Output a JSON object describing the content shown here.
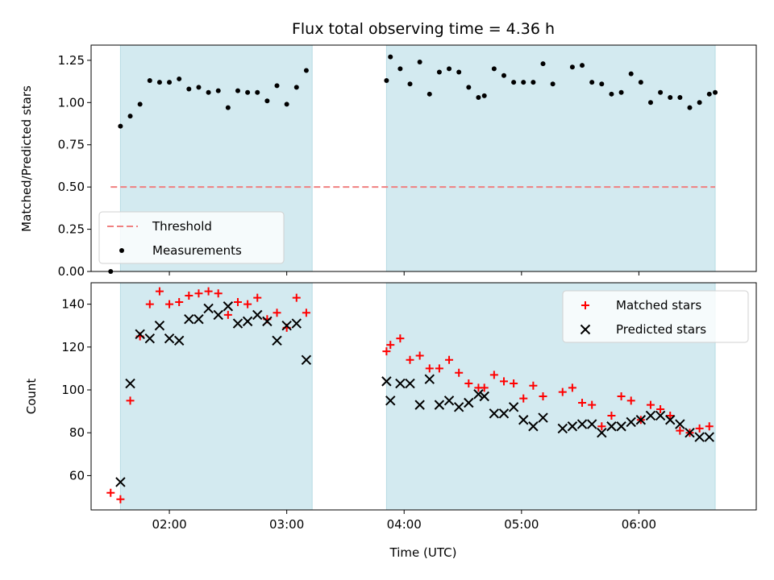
{
  "chart_data": [
    {
      "type": "scatter",
      "title": "Flux total observing time = 4.36 h",
      "xlabel": "",
      "ylabel": "Matched/Predicted stars",
      "xlim": [
        "01:20",
        "07:00"
      ],
      "ylim": [
        0,
        1.34
      ],
      "yticks": [
        "0.00",
        "0.25",
        "0.50",
        "0.75",
        "1.00",
        "1.25"
      ],
      "xticks": [
        "02:00",
        "03:00",
        "04:00",
        "05:00",
        "06:00"
      ],
      "shaded_spans": [
        [
          "01:35",
          "03:13"
        ],
        [
          "03:51",
          "06:39"
        ]
      ],
      "shade_color": "#d3eaf0",
      "threshold": {
        "name": "Threshold",
        "value": 0.5,
        "x_from": "01:30",
        "x_to": "06:39",
        "color": "#f08080"
      },
      "series": [
        {
          "name": "Measurements",
          "marker": "dot",
          "color": "#000000",
          "points": [
            [
              "01:30",
              0.0
            ],
            [
              "01:35",
              0.86
            ],
            [
              "01:40",
              0.92
            ],
            [
              "01:45",
              0.99
            ],
            [
              "01:50",
              1.13
            ],
            [
              "01:55",
              1.12
            ],
            [
              "02:00",
              1.12
            ],
            [
              "02:05",
              1.14
            ],
            [
              "02:10",
              1.08
            ],
            [
              "02:15",
              1.09
            ],
            [
              "02:20",
              1.06
            ],
            [
              "02:25",
              1.07
            ],
            [
              "02:30",
              0.97
            ],
            [
              "02:35",
              1.07
            ],
            [
              "02:40",
              1.06
            ],
            [
              "02:45",
              1.06
            ],
            [
              "02:50",
              1.01
            ],
            [
              "02:55",
              1.1
            ],
            [
              "03:00",
              0.99
            ],
            [
              "03:05",
              1.09
            ],
            [
              "03:10",
              1.19
            ],
            [
              "03:51",
              1.13
            ],
            [
              "03:53",
              1.27
            ],
            [
              "03:58",
              1.2
            ],
            [
              "04:03",
              1.11
            ],
            [
              "04:08",
              1.24
            ],
            [
              "04:13",
              1.05
            ],
            [
              "04:18",
              1.18
            ],
            [
              "04:23",
              1.2
            ],
            [
              "04:28",
              1.18
            ],
            [
              "04:33",
              1.09
            ],
            [
              "04:38",
              1.03
            ],
            [
              "04:41",
              1.04
            ],
            [
              "04:46",
              1.2
            ],
            [
              "04:51",
              1.16
            ],
            [
              "04:56",
              1.12
            ],
            [
              "05:01",
              1.12
            ],
            [
              "05:06",
              1.12
            ],
            [
              "05:11",
              1.23
            ],
            [
              "05:16",
              1.11
            ],
            [
              "05:26",
              1.21
            ],
            [
              "05:31",
              1.22
            ],
            [
              "05:36",
              1.12
            ],
            [
              "05:41",
              1.11
            ],
            [
              "05:46",
              1.05
            ],
            [
              "05:51",
              1.06
            ],
            [
              "05:56",
              1.17
            ],
            [
              "06:01",
              1.12
            ],
            [
              "06:06",
              1.0
            ],
            [
              "06:11",
              1.06
            ],
            [
              "06:16",
              1.03
            ],
            [
              "06:21",
              1.03
            ],
            [
              "06:26",
              0.97
            ],
            [
              "06:31",
              1.0
            ],
            [
              "06:36",
              1.05
            ],
            [
              "06:39",
              1.06
            ]
          ]
        }
      ],
      "legend": {
        "placement": "lower-left",
        "entries": [
          "Threshold",
          "Measurements"
        ]
      },
      "grid": false
    },
    {
      "type": "scatter",
      "title": "",
      "xlabel": "Time (UTC)",
      "ylabel": "Count",
      "xlim": [
        "01:20",
        "07:00"
      ],
      "ylim": [
        44,
        150
      ],
      "yticks": [
        "60",
        "80",
        "100",
        "120",
        "140"
      ],
      "xticks": [
        "02:00",
        "03:00",
        "04:00",
        "05:00",
        "06:00"
      ],
      "shaded_spans": [
        [
          "01:35",
          "03:13"
        ],
        [
          "03:51",
          "06:39"
        ]
      ],
      "shade_color": "#d3eaf0",
      "series": [
        {
          "name": "Matched stars",
          "marker": "plus",
          "color": "#ff0000",
          "points": [
            [
              "01:30",
              52
            ],
            [
              "01:35",
              49
            ],
            [
              "01:40",
              95
            ],
            [
              "01:45",
              125
            ],
            [
              "01:50",
              140
            ],
            [
              "01:55",
              146
            ],
            [
              "02:00",
              140
            ],
            [
              "02:05",
              141
            ],
            [
              "02:10",
              144
            ],
            [
              "02:15",
              145
            ],
            [
              "02:20",
              146
            ],
            [
              "02:25",
              145
            ],
            [
              "02:30",
              135
            ],
            [
              "02:35",
              141
            ],
            [
              "02:40",
              140
            ],
            [
              "02:45",
              143
            ],
            [
              "02:50",
              133
            ],
            [
              "02:55",
              136
            ],
            [
              "03:00",
              129
            ],
            [
              "03:05",
              143
            ],
            [
              "03:10",
              136
            ],
            [
              "03:51",
              118
            ],
            [
              "03:53",
              121
            ],
            [
              "03:58",
              124
            ],
            [
              "04:03",
              114
            ],
            [
              "04:08",
              116
            ],
            [
              "04:13",
              110
            ],
            [
              "04:18",
              110
            ],
            [
              "04:23",
              114
            ],
            [
              "04:28",
              108
            ],
            [
              "04:33",
              103
            ],
            [
              "04:38",
              101
            ],
            [
              "04:41",
              101
            ],
            [
              "04:46",
              107
            ],
            [
              "04:51",
              104
            ],
            [
              "04:56",
              103
            ],
            [
              "05:01",
              96
            ],
            [
              "05:06",
              102
            ],
            [
              "05:11",
              97
            ],
            [
              "05:21",
              99
            ],
            [
              "05:26",
              101
            ],
            [
              "05:31",
              94
            ],
            [
              "05:36",
              93
            ],
            [
              "05:41",
              83
            ],
            [
              "05:46",
              88
            ],
            [
              "05:51",
              97
            ],
            [
              "05:56",
              95
            ],
            [
              "06:01",
              86
            ],
            [
              "06:06",
              93
            ],
            [
              "06:11",
              91
            ],
            [
              "06:16",
              88
            ],
            [
              "06:21",
              81
            ],
            [
              "06:26",
              80
            ],
            [
              "06:31",
              82
            ],
            [
              "06:36",
              83
            ]
          ]
        },
        {
          "name": "Predicted stars",
          "marker": "x",
          "color": "#000000",
          "points": [
            [
              "01:35",
              57
            ],
            [
              "01:40",
              103
            ],
            [
              "01:45",
              126
            ],
            [
              "01:50",
              124
            ],
            [
              "01:55",
              130
            ],
            [
              "02:00",
              124
            ],
            [
              "02:05",
              123
            ],
            [
              "02:10",
              133
            ],
            [
              "02:15",
              133
            ],
            [
              "02:20",
              138
            ],
            [
              "02:25",
              135
            ],
            [
              "02:30",
              139
            ],
            [
              "02:35",
              131
            ],
            [
              "02:40",
              132
            ],
            [
              "02:45",
              135
            ],
            [
              "02:50",
              132
            ],
            [
              "02:55",
              123
            ],
            [
              "03:00",
              130
            ],
            [
              "03:05",
              131
            ],
            [
              "03:10",
              114
            ],
            [
              "03:51",
              104
            ],
            [
              "03:53",
              95
            ],
            [
              "03:58",
              103
            ],
            [
              "04:03",
              103
            ],
            [
              "04:08",
              93
            ],
            [
              "04:13",
              105
            ],
            [
              "04:18",
              93
            ],
            [
              "04:23",
              95
            ],
            [
              "04:28",
              92
            ],
            [
              "04:33",
              94
            ],
            [
              "04:38",
              98
            ],
            [
              "04:41",
              97
            ],
            [
              "04:46",
              89
            ],
            [
              "04:51",
              89
            ],
            [
              "04:56",
              92
            ],
            [
              "05:01",
              86
            ],
            [
              "05:06",
              83
            ],
            [
              "05:11",
              87
            ],
            [
              "05:21",
              82
            ],
            [
              "05:26",
              83
            ],
            [
              "05:31",
              84
            ],
            [
              "05:36",
              84
            ],
            [
              "05:41",
              80
            ],
            [
              "05:46",
              83
            ],
            [
              "05:51",
              83
            ],
            [
              "05:56",
              85
            ],
            [
              "06:01",
              86
            ],
            [
              "06:06",
              88
            ],
            [
              "06:11",
              88
            ],
            [
              "06:16",
              86
            ],
            [
              "06:21",
              84
            ],
            [
              "06:26",
              80
            ],
            [
              "06:31",
              78
            ],
            [
              "06:36",
              78
            ]
          ]
        }
      ],
      "legend": {
        "placement": "upper-right",
        "entries": [
          "Matched stars",
          "Predicted stars"
        ]
      },
      "grid": false
    }
  ]
}
